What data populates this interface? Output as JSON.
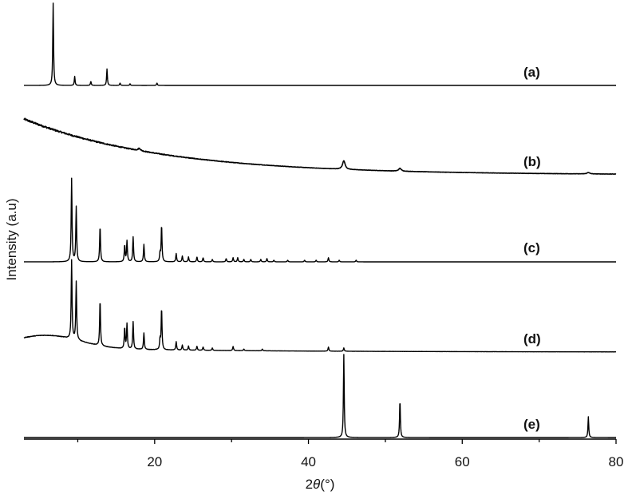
{
  "chart_data": {
    "type": "line",
    "title": "",
    "xlabel": "2θ(°)",
    "xlabel_parts": {
      "symbol": "2θ",
      "unit": "(°)"
    },
    "ylabel": "Intensity (a.u)",
    "xlim": [
      3,
      80
    ],
    "x_ticks": [
      "20",
      "40",
      "60",
      "80"
    ],
    "y_ticks_shown": false,
    "grid": false,
    "legend": "none (series labeled inline at right)",
    "stacked_offsets": true,
    "series": [
      {
        "name": "(a)",
        "baseline": 0,
        "peaks": [
          [
            6.8,
            1.0
          ],
          [
            9.6,
            0.11
          ],
          [
            11.7,
            0.05
          ],
          [
            13.8,
            0.2
          ],
          [
            15.5,
            0.03
          ],
          [
            16.8,
            0.02
          ],
          [
            20.3,
            0.03
          ]
        ]
      },
      {
        "name": "(b)",
        "baseline": 0,
        "broad_background": true,
        "peaks": [
          [
            18.0,
            0.03
          ],
          [
            44.6,
            0.12
          ],
          [
            51.9,
            0.04
          ],
          [
            76.4,
            0.02
          ]
        ]
      },
      {
        "name": "(c)",
        "baseline": 0,
        "peaks": [
          [
            9.2,
            1.0
          ],
          [
            9.8,
            0.66
          ],
          [
            12.9,
            0.43
          ],
          [
            16.1,
            0.2
          ],
          [
            16.4,
            0.25
          ],
          [
            17.2,
            0.3
          ],
          [
            18.6,
            0.21
          ],
          [
            20.7,
            0.1
          ],
          [
            20.9,
            0.44
          ],
          [
            22.8,
            0.1
          ],
          [
            23.6,
            0.07
          ],
          [
            24.4,
            0.06
          ],
          [
            25.5,
            0.06
          ],
          [
            26.3,
            0.05
          ],
          [
            27.5,
            0.03
          ],
          [
            29.3,
            0.04
          ],
          [
            30.2,
            0.05
          ],
          [
            30.8,
            0.05
          ],
          [
            31.6,
            0.03
          ],
          [
            32.5,
            0.03
          ],
          [
            33.8,
            0.03
          ],
          [
            34.6,
            0.04
          ],
          [
            35.5,
            0.02
          ],
          [
            37.3,
            0.02
          ],
          [
            39.5,
            0.02
          ],
          [
            41.0,
            0.02
          ],
          [
            42.6,
            0.05
          ],
          [
            44.0,
            0.02
          ],
          [
            46.2,
            0.02
          ]
        ]
      },
      {
        "name": "(d)",
        "baseline": 0,
        "broad_background": true,
        "peaks": [
          [
            9.2,
            0.95
          ],
          [
            9.8,
            0.7
          ],
          [
            12.9,
            0.55
          ],
          [
            16.1,
            0.25
          ],
          [
            16.4,
            0.3
          ],
          [
            17.2,
            0.33
          ],
          [
            18.6,
            0.2
          ],
          [
            20.7,
            0.12
          ],
          [
            20.9,
            0.5
          ],
          [
            22.8,
            0.1
          ],
          [
            23.6,
            0.06
          ],
          [
            24.4,
            0.05
          ],
          [
            25.5,
            0.05
          ],
          [
            26.3,
            0.04
          ],
          [
            27.5,
            0.03
          ],
          [
            30.2,
            0.05
          ],
          [
            31.6,
            0.02
          ],
          [
            34.0,
            0.02
          ],
          [
            42.6,
            0.05
          ],
          [
            44.6,
            0.04
          ]
        ]
      },
      {
        "name": "(e)",
        "baseline": 0,
        "peaks": [
          [
            44.6,
            1.0
          ],
          [
            51.9,
            0.45
          ],
          [
            76.4,
            0.25
          ]
        ]
      }
    ]
  }
}
